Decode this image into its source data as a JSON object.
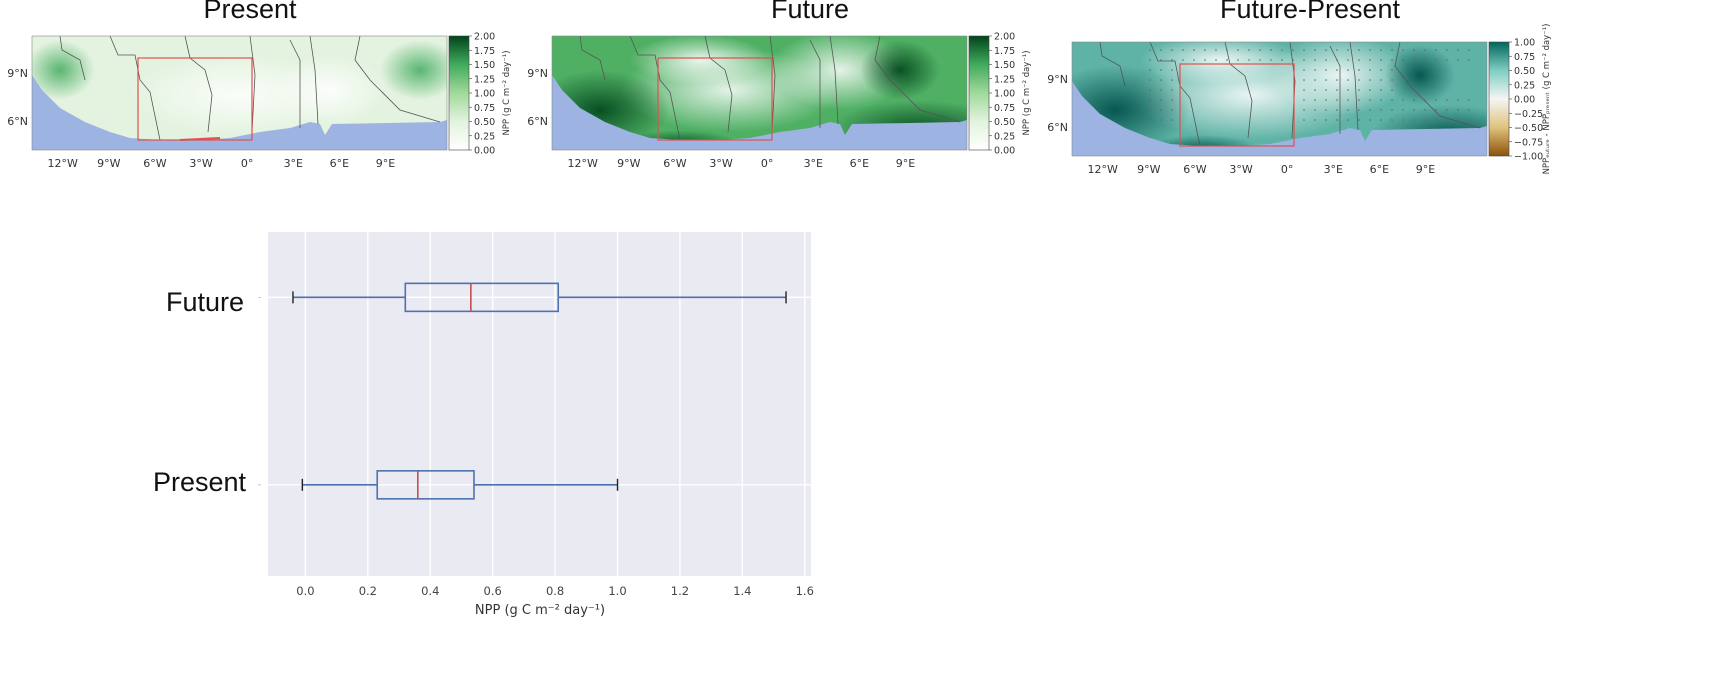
{
  "chart_data": [
    {
      "type": "heatmap",
      "title": "Present",
      "colorbar": {
        "label": "NPP (g C m⁻² day⁻¹)",
        "ticks": [
          "2.00",
          "1.75",
          "1.50",
          "1.25",
          "1.00",
          "0.75",
          "0.50",
          "0.25",
          "0.00"
        ],
        "range": [
          0,
          2
        ],
        "colors": [
          "#ffffff",
          "#00441b"
        ]
      },
      "xticks": [
        "12°W",
        "9°W",
        "6°W",
        "3°W",
        "0°",
        "3°E",
        "6°E",
        "9°E"
      ],
      "yticks": [
        "9°N",
        "6°N"
      ]
    },
    {
      "type": "heatmap",
      "title": "Future",
      "colorbar": {
        "label": "NPP (g C m⁻² day⁻¹)",
        "ticks": [
          "2.00",
          "1.75",
          "1.50",
          "1.25",
          "1.00",
          "0.75",
          "0.50",
          "0.25",
          "0.00"
        ],
        "range": [
          0,
          2
        ],
        "colors": [
          "#ffffff",
          "#00441b"
        ]
      },
      "xticks": [
        "12°W",
        "9°W",
        "6°W",
        "3°W",
        "0°",
        "3°E",
        "6°E",
        "9°E"
      ],
      "yticks": [
        "9°N",
        "6°N"
      ]
    },
    {
      "type": "heatmap",
      "title": "Future-Present",
      "colorbar": {
        "label": "NPPₑᵤₜᵤᵣₑ - NPPₚᵣₑₛₑₙₜ (g C m⁻² day⁻¹)",
        "ticks": [
          "1.00",
          "0.75",
          "0.50",
          "0.25",
          "0.00",
          "−0.25",
          "−0.50",
          "−0.75",
          "−1.00"
        ],
        "range": [
          -1,
          1
        ],
        "colors": [
          "#8c510a",
          "#ffffff",
          "#01665e"
        ]
      },
      "xticks": [
        "12°W",
        "9°W",
        "6°W",
        "3°W",
        "0°",
        "3°E",
        "6°E",
        "9°E"
      ],
      "yticks": [
        "9°N",
        "6°N"
      ]
    },
    {
      "type": "box",
      "categories": [
        "Future",
        "Present"
      ],
      "series": [
        {
          "name": "Future",
          "whisker_low": -0.04,
          "q1": 0.32,
          "median": 0.53,
          "q3": 0.81,
          "whisker_high": 1.54
        },
        {
          "name": "Present",
          "whisker_low": -0.01,
          "q1": 0.23,
          "median": 0.36,
          "q3": 0.54,
          "whisker_high": 1.0
        }
      ],
      "xlabel": "NPP (g C m⁻² day⁻¹)",
      "xlim": [
        -0.12,
        1.62
      ],
      "xticks": [
        "0.0",
        "0.2",
        "0.4",
        "0.6",
        "0.8",
        "1.0",
        "1.2",
        "1.4",
        "1.6"
      ],
      "grid": true,
      "colors": {
        "box": "#4c72b0",
        "median": "#c44e52",
        "whisker_cap": "#222222",
        "background": "#eaeaf2"
      }
    }
  ]
}
